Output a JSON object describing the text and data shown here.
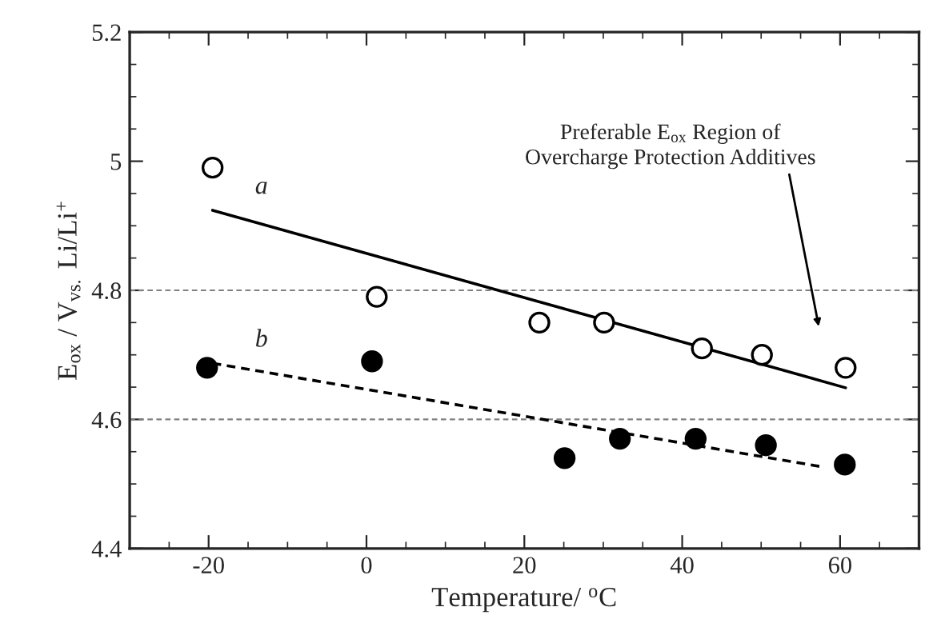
{
  "chart_data": {
    "type": "scatter",
    "xlabel": "Temperature/ $^{o}$C",
    "ylabel": "E$_{ox}$ / V$_{vs.}$ Li/Li$^{+}$",
    "series": [
      {
        "color": "#ffffff",
        "marker": "circle",
        "x": [
          -19.5,
          1.3,
          21.9,
          30.1,
          42.5,
          50.1,
          60.7
        ],
        "values": [
          4.99,
          4.79,
          4.75,
          4.75,
          4.71,
          4.7,
          4.68
        ]
      },
      {
        "type": "line",
        "name": "a",
        "color": "#000000",
        "line_style": "solid",
        "marker": "none",
        "x": [
          -19.5,
          60.7
        ],
        "values": [
          4.924,
          4.649
        ]
      },
      {
        "color": "#000000",
        "marker": "circle",
        "x": [
          -20.2,
          0.7,
          25.1,
          32.1,
          41.7,
          50.6,
          60.6
        ],
        "values": [
          4.68,
          4.69,
          4.54,
          4.57,
          4.57,
          4.56,
          4.53
        ]
      },
      {
        "type": "line",
        "name": "b",
        "color": "#000000",
        "line_style": "dashed",
        "marker": "none",
        "x": [
          -19.5,
          57.5
        ],
        "values": [
          4.687,
          4.527
        ]
      }
    ],
    "xlim": [
      -30,
      70
    ],
    "xticks": [
      -20,
      0,
      20,
      40,
      60
    ],
    "ylim": [
      4.4,
      5.2
    ],
    "yticks": [
      {
        "value": 4.4,
        "label": "4.4"
      },
      {
        "value": 4.6,
        "label": "4.6"
      },
      {
        "value": 4.8,
        "label": "4.8"
      },
      5,
      {
        "value": 5.2,
        "label": "5.2"
      }
    ],
    "ref_lines": [
      {
        "axis": "y",
        "value": 4.8,
        "color": "#808080",
        "line_style": "dashed"
      },
      {
        "axis": "y",
        "value": 4.6,
        "color": "#808080",
        "line_style": "dashed"
      }
    ],
    "annotations": [
      "Preferable E$_{ox}$ Region of\nOvercharge Protection Additives"
    ],
    "grid": false,
    "legend": false
  }
}
